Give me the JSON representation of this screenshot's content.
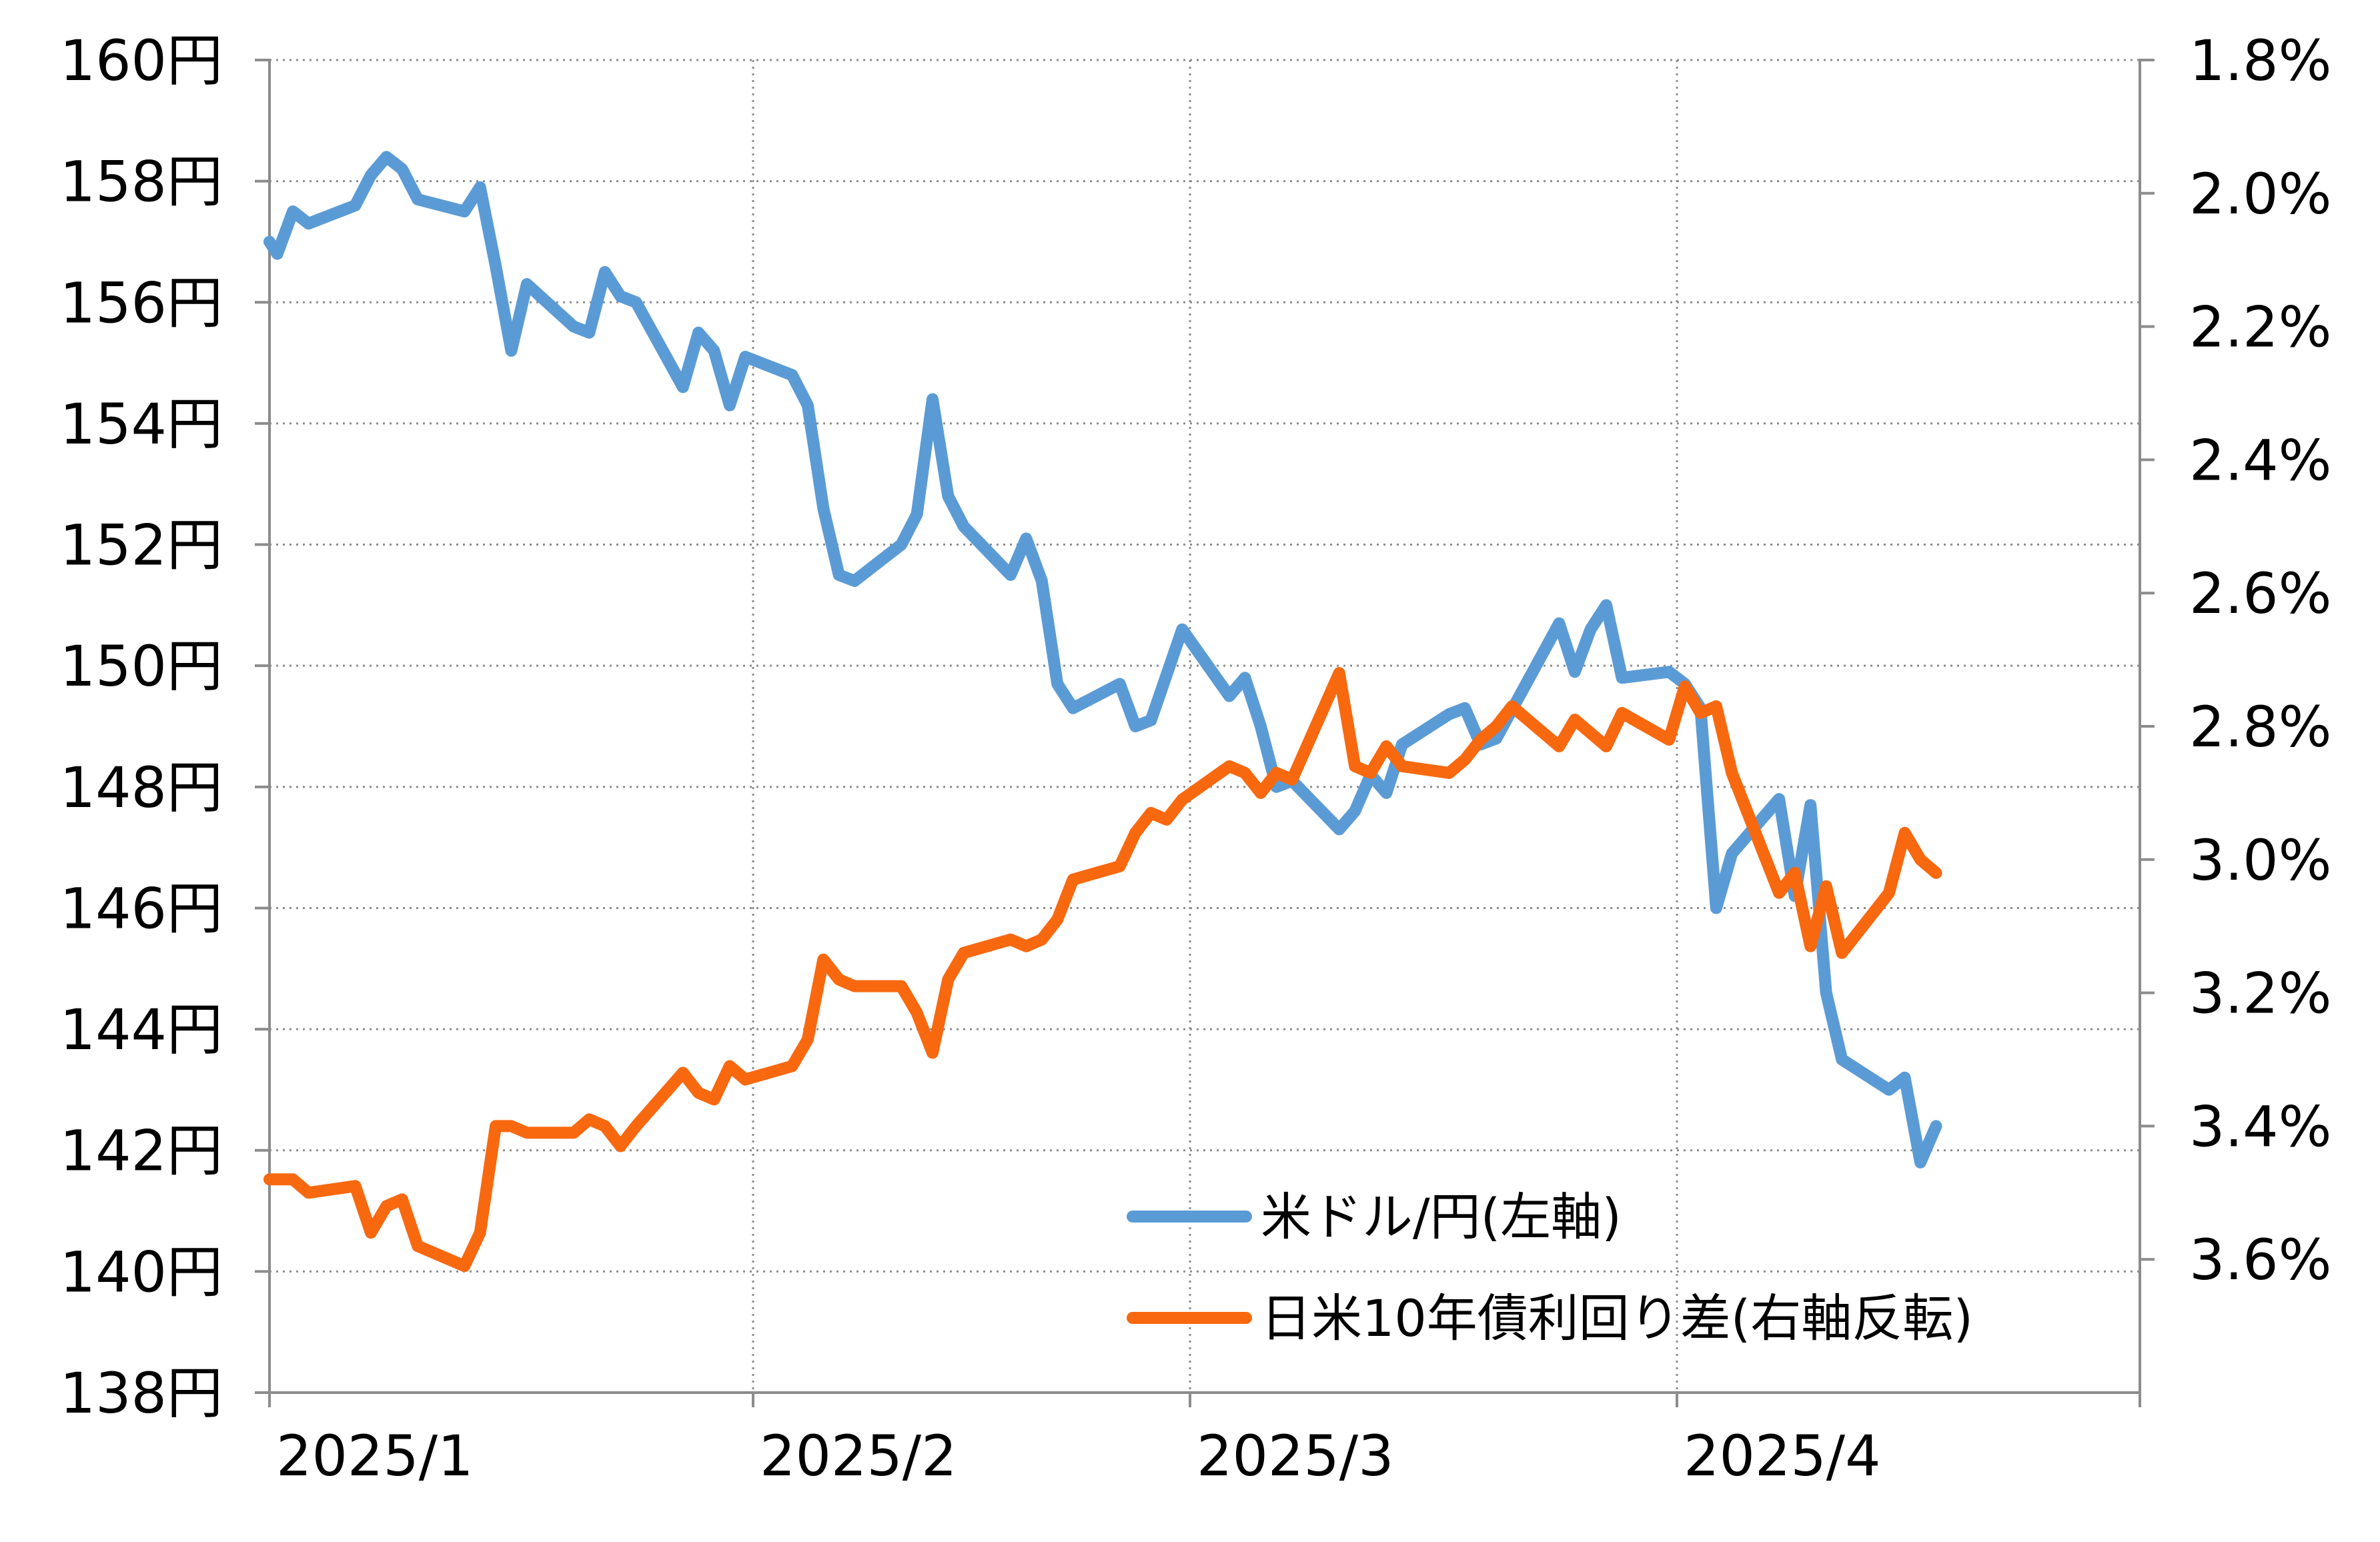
{
  "chart_data": {
    "type": "line",
    "title": "",
    "xlabel": "",
    "ylabel_left": "",
    "ylabel_right": "",
    "x_ticks": [
      "2025/1",
      "2025/2",
      "2025/3",
      "2025/4"
    ],
    "x_range_days": [
      0,
      120
    ],
    "y_left": {
      "range": [
        138,
        160
      ],
      "ticks": [
        160,
        158,
        156,
        154,
        152,
        150,
        148,
        146,
        144,
        142,
        140,
        138
      ],
      "tick_labels": [
        "160円",
        "158円",
        "156円",
        "154円",
        "152円",
        "150円",
        "148円",
        "146円",
        "144円",
        "142円",
        "140円",
        "138円"
      ]
    },
    "y_right": {
      "range": [
        1.8,
        3.8
      ],
      "inverted": true,
      "ticks": [
        1.8,
        2.0,
        2.2,
        2.4,
        2.6,
        2.8,
        3.0,
        3.2,
        3.4,
        3.6
      ],
      "tick_labels": [
        "1.8%",
        "2.0%",
        "2.2%",
        "2.4%",
        "2.6%",
        "2.8%",
        "3.0%",
        "3.2%",
        "3.4%",
        "3.6%"
      ]
    },
    "grid": true,
    "legend_position": "bottom-center",
    "series": [
      {
        "name": "米ドル/円(左軸)",
        "axis": "left",
        "color": "#5B9BD5",
        "points": [
          [
            0,
            157.0
          ],
          [
            0.5,
            156.8
          ],
          [
            1.5,
            157.5
          ],
          [
            2.5,
            157.3
          ],
          [
            5.5,
            157.6
          ],
          [
            6.5,
            158.1
          ],
          [
            7.5,
            158.4
          ],
          [
            8.5,
            158.2
          ],
          [
            9.5,
            157.7
          ],
          [
            12.5,
            157.5
          ],
          [
            13.5,
            157.9
          ],
          [
            14.5,
            156.6
          ],
          [
            15.5,
            155.2
          ],
          [
            16.5,
            156.3
          ],
          [
            19.5,
            155.6
          ],
          [
            20.5,
            155.5
          ],
          [
            21.5,
            156.5
          ],
          [
            22.5,
            156.1
          ],
          [
            23.5,
            156.0
          ],
          [
            26.5,
            154.6
          ],
          [
            27.5,
            155.5
          ],
          [
            28.5,
            155.2
          ],
          [
            29.5,
            154.3
          ],
          [
            30.5,
            155.1
          ],
          [
            33.5,
            154.8
          ],
          [
            34.5,
            154.3
          ],
          [
            35.5,
            152.6
          ],
          [
            36.5,
            151.5
          ],
          [
            37.5,
            151.4
          ],
          [
            40.5,
            152.0
          ],
          [
            41.5,
            152.5
          ],
          [
            42.5,
            154.4
          ],
          [
            43.5,
            152.8
          ],
          [
            44.5,
            152.3
          ],
          [
            47.5,
            151.5
          ],
          [
            48.5,
            152.1
          ],
          [
            49.5,
            151.4
          ],
          [
            50.5,
            149.7
          ],
          [
            51.5,
            149.3
          ],
          [
            54.5,
            149.7
          ],
          [
            55.5,
            149.0
          ],
          [
            56.5,
            149.1
          ],
          [
            58.5,
            150.6
          ],
          [
            61.5,
            149.5
          ],
          [
            62.5,
            149.8
          ],
          [
            63.5,
            149.0
          ],
          [
            64.5,
            148.0
          ],
          [
            65.5,
            148.1
          ],
          [
            68.5,
            147.3
          ],
          [
            69.5,
            147.6
          ],
          [
            70.5,
            148.2
          ],
          [
            71.5,
            147.9
          ],
          [
            72.5,
            148.7
          ],
          [
            75.5,
            149.2
          ],
          [
            76.5,
            149.3
          ],
          [
            77.5,
            148.7
          ],
          [
            78.5,
            148.8
          ],
          [
            82.5,
            150.7
          ],
          [
            83.5,
            149.9
          ],
          [
            84.5,
            150.6
          ],
          [
            85.5,
            151.0
          ],
          [
            86.5,
            149.8
          ],
          [
            89.5,
            149.9
          ],
          [
            90.5,
            149.7
          ],
          [
            91.5,
            149.3
          ],
          [
            92.5,
            146.0
          ],
          [
            93.5,
            146.9
          ],
          [
            96.5,
            147.8
          ],
          [
            97.5,
            146.2
          ],
          [
            98.5,
            147.7
          ],
          [
            99.5,
            144.6
          ],
          [
            100.5,
            143.5
          ],
          [
            103.5,
            143.0
          ],
          [
            104.5,
            143.2
          ],
          [
            105.5,
            141.8
          ],
          [
            106.5,
            142.4
          ]
        ]
      },
      {
        "name": "日米10年債利回り差(右軸反転)",
        "axis": "right",
        "color": "#F8680F",
        "points": [
          [
            0,
            3.48
          ],
          [
            1.5,
            3.48
          ],
          [
            2.5,
            3.5
          ],
          [
            5.5,
            3.49
          ],
          [
            6.5,
            3.56
          ],
          [
            7.5,
            3.52
          ],
          [
            8.5,
            3.51
          ],
          [
            9.5,
            3.58
          ],
          [
            12.5,
            3.61
          ],
          [
            13.5,
            3.56
          ],
          [
            14.5,
            3.4
          ],
          [
            15.5,
            3.4
          ],
          [
            16.5,
            3.41
          ],
          [
            19.5,
            3.41
          ],
          [
            20.5,
            3.39
          ],
          [
            21.5,
            3.4
          ],
          [
            22.5,
            3.43
          ],
          [
            23.5,
            3.4
          ],
          [
            26.5,
            3.32
          ],
          [
            27.5,
            3.35
          ],
          [
            28.5,
            3.36
          ],
          [
            29.5,
            3.31
          ],
          [
            30.5,
            3.33
          ],
          [
            33.5,
            3.31
          ],
          [
            34.5,
            3.27
          ],
          [
            35.5,
            3.15
          ],
          [
            36.5,
            3.18
          ],
          [
            37.5,
            3.19
          ],
          [
            40.5,
            3.19
          ],
          [
            41.5,
            3.23
          ],
          [
            42.5,
            3.29
          ],
          [
            43.5,
            3.18
          ],
          [
            44.5,
            3.14
          ],
          [
            47.5,
            3.12
          ],
          [
            48.5,
            3.13
          ],
          [
            49.5,
            3.12
          ],
          [
            50.5,
            3.09
          ],
          [
            51.5,
            3.03
          ],
          [
            54.5,
            3.01
          ],
          [
            55.5,
            2.96
          ],
          [
            56.5,
            2.93
          ],
          [
            57.5,
            2.94
          ],
          [
            58.5,
            2.91
          ],
          [
            61.5,
            2.86
          ],
          [
            62.5,
            2.87
          ],
          [
            63.5,
            2.9
          ],
          [
            64.5,
            2.87
          ],
          [
            65.5,
            2.88
          ],
          [
            68.5,
            2.72
          ],
          [
            69.5,
            2.86
          ],
          [
            70.5,
            2.87
          ],
          [
            71.5,
            2.83
          ],
          [
            72.5,
            2.86
          ],
          [
            75.5,
            2.87
          ],
          [
            76.5,
            2.85
          ],
          [
            77.5,
            2.82
          ],
          [
            78.5,
            2.8
          ],
          [
            79.5,
            2.77
          ],
          [
            82.5,
            2.83
          ],
          [
            83.5,
            2.79
          ],
          [
            84.5,
            2.81
          ],
          [
            85.5,
            2.83
          ],
          [
            86.5,
            2.78
          ],
          [
            89.5,
            2.82
          ],
          [
            90.5,
            2.74
          ],
          [
            91.5,
            2.78
          ],
          [
            92.5,
            2.77
          ],
          [
            93.5,
            2.87
          ],
          [
            96.5,
            3.05
          ],
          [
            97.5,
            3.02
          ],
          [
            98.5,
            3.13
          ],
          [
            99.5,
            3.04
          ],
          [
            100.5,
            3.14
          ],
          [
            103.5,
            3.05
          ],
          [
            104.5,
            2.96
          ],
          [
            105.5,
            3.0
          ],
          [
            106.5,
            3.02
          ]
        ]
      }
    ]
  }
}
